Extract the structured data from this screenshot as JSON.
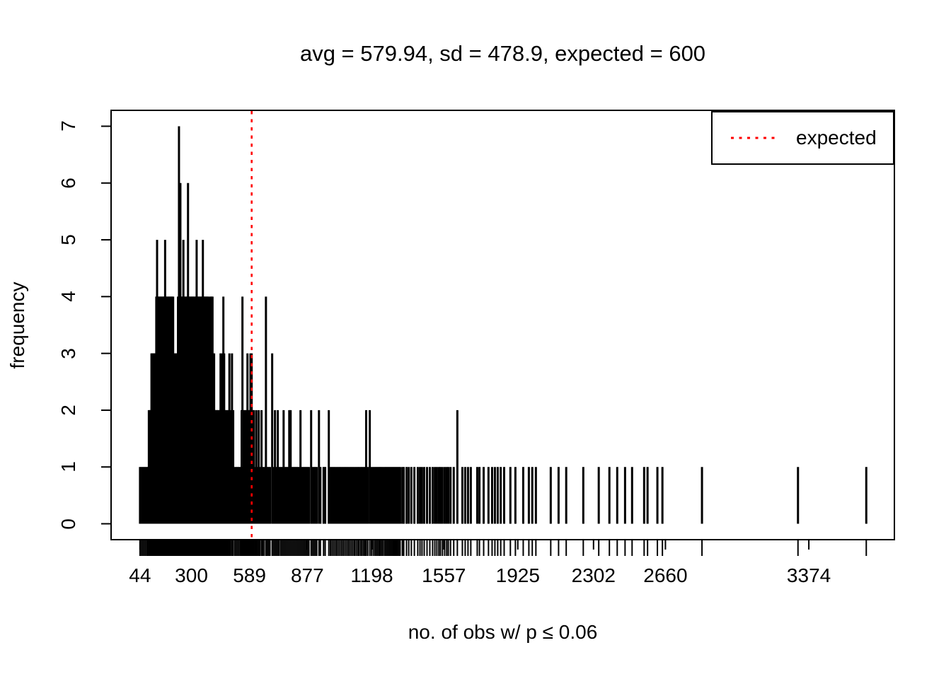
{
  "title": "avg = 579.94, sd = 478.9, expected = 600",
  "chart_data": {
    "type": "bar",
    "subtype": "spike-histogram-with-rug",
    "title": "avg = 579.94, sd = 478.9, expected = 600",
    "xlabel": "no. of obs w/ p ≤ 0.06",
    "ylabel": "frequency",
    "stats": {
      "avg": 579.94,
      "sd": 478.9,
      "expected": 600
    },
    "x_ticks": [
      44,
      300,
      589,
      877,
      1198,
      1557,
      1925,
      2302,
      2660,
      3374
    ],
    "y_ticks": [
      0,
      1,
      2,
      3,
      4,
      5,
      6,
      7
    ],
    "xlim": [
      -100,
      3800
    ],
    "ylim": [
      -0.28,
      7.28
    ],
    "grid": false,
    "rug": true,
    "colors": {
      "spikes": "#000000",
      "expected_line": "#FF0000",
      "axis": "#000000"
    },
    "expected_line": {
      "value": 600,
      "style": "dotted",
      "color": "#FF0000"
    },
    "legend": {
      "position": "top-right",
      "entries": [
        {
          "label": "expected",
          "color": "#FF0000",
          "line_style": "dotted"
        }
      ]
    },
    "spikes": [
      [
        44,
        1
      ],
      [
        51,
        1
      ],
      [
        58,
        1
      ],
      [
        65,
        1
      ],
      [
        72,
        1
      ],
      [
        79,
        1
      ],
      [
        85,
        1
      ],
      [
        88,
        2
      ],
      [
        93,
        2
      ],
      [
        97,
        2
      ],
      [
        101,
        3
      ],
      [
        105,
        3
      ],
      [
        109,
        3
      ],
      [
        113,
        3
      ],
      [
        117,
        3
      ],
      [
        121,
        3
      ],
      [
        125,
        4
      ],
      [
        129,
        5
      ],
      [
        133,
        4
      ],
      [
        137,
        4
      ],
      [
        141,
        4
      ],
      [
        145,
        4
      ],
      [
        149,
        4
      ],
      [
        153,
        4
      ],
      [
        157,
        4
      ],
      [
        161,
        4
      ],
      [
        165,
        4
      ],
      [
        169,
        5
      ],
      [
        173,
        4
      ],
      [
        177,
        4
      ],
      [
        181,
        4
      ],
      [
        185,
        4
      ],
      [
        189,
        4
      ],
      [
        193,
        4
      ],
      [
        197,
        4
      ],
      [
        201,
        4
      ],
      [
        205,
        4
      ],
      [
        209,
        4
      ],
      [
        213,
        3
      ],
      [
        217,
        3
      ],
      [
        221,
        3
      ],
      [
        225,
        3
      ],
      [
        229,
        3
      ],
      [
        233,
        4
      ],
      [
        236,
        4
      ],
      [
        238,
        7
      ],
      [
        241,
        4
      ],
      [
        245,
        6
      ],
      [
        249,
        4
      ],
      [
        253,
        4
      ],
      [
        257,
        4
      ],
      [
        260,
        5
      ],
      [
        264,
        4
      ],
      [
        268,
        4
      ],
      [
        272,
        4
      ],
      [
        276,
        4
      ],
      [
        280,
        4
      ],
      [
        283,
        6
      ],
      [
        287,
        4
      ],
      [
        291,
        4
      ],
      [
        295,
        4
      ],
      [
        299,
        4
      ],
      [
        303,
        4
      ],
      [
        307,
        4
      ],
      [
        311,
        4
      ],
      [
        315,
        4
      ],
      [
        319,
        4
      ],
      [
        323,
        4
      ],
      [
        326,
        5
      ],
      [
        330,
        4
      ],
      [
        334,
        4
      ],
      [
        338,
        4
      ],
      [
        342,
        4
      ],
      [
        346,
        4
      ],
      [
        350,
        4
      ],
      [
        354,
        4
      ],
      [
        357,
        5
      ],
      [
        361,
        4
      ],
      [
        365,
        4
      ],
      [
        369,
        4
      ],
      [
        373,
        4
      ],
      [
        377,
        4
      ],
      [
        381,
        4
      ],
      [
        385,
        4
      ],
      [
        389,
        3
      ],
      [
        393,
        4
      ],
      [
        397,
        4
      ],
      [
        401,
        4
      ],
      [
        405,
        4
      ],
      [
        409,
        3
      ],
      [
        413,
        3
      ],
      [
        417,
        2
      ],
      [
        420,
        2
      ],
      [
        424,
        2
      ],
      [
        428,
        2
      ],
      [
        432,
        2
      ],
      [
        436,
        2
      ],
      [
        440,
        2
      ],
      [
        445,
        3
      ],
      [
        449,
        2
      ],
      [
        453,
        3
      ],
      [
        457,
        2
      ],
      [
        459,
        4
      ],
      [
        463,
        3
      ],
      [
        467,
        2
      ],
      [
        471,
        2
      ],
      [
        477,
        2
      ],
      [
        483,
        2
      ],
      [
        489,
        3
      ],
      [
        495,
        2
      ],
      [
        502,
        3
      ],
      [
        508,
        2
      ],
      [
        516,
        1
      ],
      [
        523,
        1
      ],
      [
        530,
        1
      ],
      [
        537,
        1
      ],
      [
        544,
        1
      ],
      [
        550,
        2
      ],
      [
        554,
        4
      ],
      [
        558,
        2
      ],
      [
        563,
        2
      ],
      [
        568,
        2
      ],
      [
        573,
        2
      ],
      [
        579,
        3
      ],
      [
        585,
        2
      ],
      [
        590,
        2
      ],
      [
        594,
        3
      ],
      [
        600,
        3
      ],
      [
        605,
        2
      ],
      [
        611,
        2
      ],
      [
        617,
        1
      ],
      [
        623,
        2
      ],
      [
        629,
        1
      ],
      [
        635,
        2
      ],
      [
        641,
        1
      ],
      [
        649,
        2
      ],
      [
        655,
        1
      ],
      [
        662,
        1
      ],
      [
        671,
        4
      ],
      [
        677,
        1
      ],
      [
        684,
        1
      ],
      [
        691,
        1
      ],
      [
        702,
        3
      ],
      [
        709,
        1
      ],
      [
        716,
        2
      ],
      [
        723,
        1
      ],
      [
        730,
        2
      ],
      [
        737,
        1
      ],
      [
        745,
        1
      ],
      [
        752,
        1
      ],
      [
        759,
        2
      ],
      [
        766,
        1
      ],
      [
        773,
        1
      ],
      [
        780,
        1
      ],
      [
        787,
        2
      ],
      [
        794,
        2
      ],
      [
        801,
        1
      ],
      [
        808,
        1
      ],
      [
        815,
        1
      ],
      [
        822,
        1
      ],
      [
        829,
        1
      ],
      [
        836,
        1
      ],
      [
        843,
        2
      ],
      [
        850,
        1
      ],
      [
        857,
        1
      ],
      [
        864,
        1
      ],
      [
        871,
        1
      ],
      [
        878,
        1
      ],
      [
        885,
        1
      ],
      [
        896,
        2
      ],
      [
        903,
        1
      ],
      [
        910,
        1
      ],
      [
        917,
        1
      ],
      [
        924,
        1
      ],
      [
        935,
        2
      ],
      [
        942,
        1
      ],
      [
        958,
        1
      ],
      [
        966,
        1
      ],
      [
        984,
        2
      ],
      [
        992,
        1
      ],
      [
        1000,
        1
      ],
      [
        1008,
        1
      ],
      [
        1016,
        1
      ],
      [
        1024,
        1
      ],
      [
        1032,
        1
      ],
      [
        1040,
        1
      ],
      [
        1048,
        1
      ],
      [
        1056,
        1
      ],
      [
        1064,
        1
      ],
      [
        1072,
        1
      ],
      [
        1080,
        1
      ],
      [
        1088,
        1
      ],
      [
        1096,
        1
      ],
      [
        1104,
        1
      ],
      [
        1112,
        1
      ],
      [
        1120,
        1
      ],
      [
        1128,
        1
      ],
      [
        1135,
        1
      ],
      [
        1143,
        1
      ],
      [
        1150,
        1
      ],
      [
        1158,
        1
      ],
      [
        1165,
        1
      ],
      [
        1170,
        2
      ],
      [
        1178,
        1
      ],
      [
        1188,
        2
      ],
      [
        1196,
        1
      ],
      [
        1205,
        1
      ],
      [
        1213,
        1
      ],
      [
        1220,
        1
      ],
      [
        1227,
        1
      ],
      [
        1234,
        1
      ],
      [
        1240,
        1
      ],
      [
        1247,
        1
      ],
      [
        1254,
        1
      ],
      [
        1262,
        1
      ],
      [
        1269,
        1
      ],
      [
        1276,
        1
      ],
      [
        1283,
        1
      ],
      [
        1290,
        1
      ],
      [
        1297,
        1
      ],
      [
        1304,
        1
      ],
      [
        1311,
        1
      ],
      [
        1318,
        1
      ],
      [
        1325,
        1
      ],
      [
        1332,
        1
      ],
      [
        1339,
        1
      ],
      [
        1350,
        1
      ],
      [
        1357,
        1
      ],
      [
        1371,
        1
      ],
      [
        1382,
        1
      ],
      [
        1395,
        1
      ],
      [
        1410,
        1
      ],
      [
        1427,
        1
      ],
      [
        1438,
        1
      ],
      [
        1448,
        1
      ],
      [
        1459,
        1
      ],
      [
        1473,
        1
      ],
      [
        1487,
        1
      ],
      [
        1501,
        1
      ],
      [
        1512,
        1
      ],
      [
        1522,
        1
      ],
      [
        1532,
        1
      ],
      [
        1540,
        1
      ],
      [
        1550,
        1
      ],
      [
        1561,
        1
      ],
      [
        1571,
        1
      ],
      [
        1579,
        1
      ],
      [
        1590,
        1
      ],
      [
        1606,
        1
      ],
      [
        1624,
        2
      ],
      [
        1649,
        1
      ],
      [
        1663,
        1
      ],
      [
        1677,
        1
      ],
      [
        1691,
        1
      ],
      [
        1723,
        1
      ],
      [
        1734,
        1
      ],
      [
        1755,
        1
      ],
      [
        1779,
        1
      ],
      [
        1797,
        1
      ],
      [
        1811,
        1
      ],
      [
        1825,
        1
      ],
      [
        1840,
        1
      ],
      [
        1857,
        1
      ],
      [
        1888,
        1
      ],
      [
        1913,
        1
      ],
      [
        1952,
        1
      ],
      [
        1980,
        1
      ],
      [
        1997,
        1
      ],
      [
        2015,
        1
      ],
      [
        2089,
        1
      ],
      [
        2128,
        1
      ],
      [
        2166,
        1
      ],
      [
        2251,
        1
      ],
      [
        2328,
        1
      ],
      [
        2381,
        1
      ],
      [
        2420,
        1
      ],
      [
        2459,
        1
      ],
      [
        2494,
        1
      ],
      [
        2554,
        1
      ],
      [
        2571,
        1
      ],
      [
        2620,
        1
      ],
      [
        2645,
        1
      ],
      [
        2842,
        1
      ],
      [
        3320,
        1
      ],
      [
        3660,
        1
      ]
    ]
  }
}
